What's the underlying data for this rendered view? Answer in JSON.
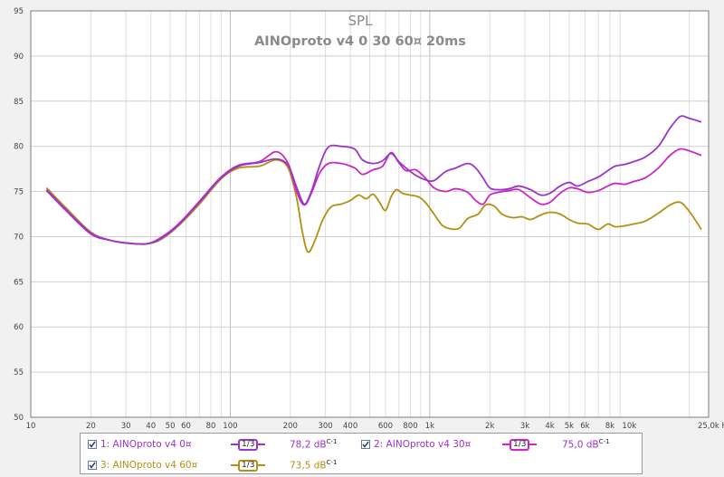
{
  "chart_data": {
    "type": "line",
    "title": "SPL",
    "subtitle": "AINOproto v4 0 30 60¤ 20ms",
    "x_scale": "log",
    "xlim": [
      10,
      25000
    ],
    "ylim": [
      50,
      95
    ],
    "grid": true,
    "legend_position": "bottom",
    "x_tick_labels": [
      {
        "value": 10,
        "label": "10"
      },
      {
        "value": 20,
        "label": "20"
      },
      {
        "value": 30,
        "label": "30"
      },
      {
        "value": 40,
        "label": "40"
      },
      {
        "value": 50,
        "label": "50"
      },
      {
        "value": 60,
        "label": "60"
      },
      {
        "value": 80,
        "label": "80"
      },
      {
        "value": 100,
        "label": "100"
      },
      {
        "value": 200,
        "label": "200"
      },
      {
        "value": 300,
        "label": "300"
      },
      {
        "value": 400,
        "label": "400"
      },
      {
        "value": 600,
        "label": "600"
      },
      {
        "value": 800,
        "label": "800"
      },
      {
        "value": 1000,
        "label": "1k"
      },
      {
        "value": 2000,
        "label": "2k"
      },
      {
        "value": 3000,
        "label": "3k"
      },
      {
        "value": 4000,
        "label": "4k"
      },
      {
        "value": 5000,
        "label": "5k"
      },
      {
        "value": 6000,
        "label": "6k"
      },
      {
        "value": 8000,
        "label": "8k"
      },
      {
        "value": 10000,
        "label": "10k"
      },
      {
        "value": 25000,
        "label": "25,0k Hz"
      }
    ],
    "y_ticks": [
      50,
      55,
      60,
      65,
      70,
      75,
      80,
      85,
      90,
      95
    ],
    "series": [
      {
        "name": "1: AINOproto v4 0¤",
        "color": "#9a35c8",
        "smoothing": "1/3",
        "value": "78,2 dB",
        "points": [
          [
            12,
            75.2
          ],
          [
            15,
            73
          ],
          [
            20,
            70.4
          ],
          [
            25,
            69.6
          ],
          [
            30,
            69.3
          ],
          [
            38,
            69.2
          ],
          [
            45,
            69.8
          ],
          [
            55,
            71.3
          ],
          [
            70,
            73.8
          ],
          [
            90,
            76.5
          ],
          [
            110,
            77.8
          ],
          [
            140,
            78.2
          ],
          [
            170,
            78.6
          ],
          [
            195,
            77.9
          ],
          [
            215,
            75.5
          ],
          [
            235,
            73.6
          ],
          [
            255,
            75
          ],
          [
            280,
            77.8
          ],
          [
            310,
            79.9
          ],
          [
            360,
            80
          ],
          [
            420,
            79.7
          ],
          [
            460,
            78.5
          ],
          [
            520,
            78.1
          ],
          [
            580,
            78.4
          ],
          [
            640,
            79.2
          ],
          [
            700,
            78.3
          ],
          [
            760,
            77.6
          ],
          [
            850,
            76.8
          ],
          [
            950,
            76.3
          ],
          [
            1050,
            76.2
          ],
          [
            1200,
            77.2
          ],
          [
            1350,
            77.6
          ],
          [
            1550,
            78.1
          ],
          [
            1700,
            77.6
          ],
          [
            1850,
            76.5
          ],
          [
            2000,
            75.4
          ],
          [
            2200,
            75.2
          ],
          [
            2500,
            75.3
          ],
          [
            2800,
            75.6
          ],
          [
            3200,
            75.2
          ],
          [
            3600,
            74.6
          ],
          [
            4000,
            74.8
          ],
          [
            4500,
            75.6
          ],
          [
            5000,
            76
          ],
          [
            5500,
            75.6
          ],
          [
            6200,
            76.1
          ],
          [
            7000,
            76.6
          ],
          [
            7800,
            77.3
          ],
          [
            8500,
            77.8
          ],
          [
            9500,
            78
          ],
          [
            10500,
            78.3
          ],
          [
            12000,
            78.8
          ],
          [
            14000,
            80
          ],
          [
            16000,
            82
          ],
          [
            18000,
            83.3
          ],
          [
            20000,
            83.1
          ],
          [
            23000,
            82.7
          ]
        ]
      },
      {
        "name": "2: AINOproto v4 30¤",
        "color": "#cc27c5",
        "smoothing": "1/3",
        "value": "75,0 dB",
        "points": [
          [
            12,
            75.1
          ],
          [
            15,
            72.9
          ],
          [
            20,
            70.3
          ],
          [
            25,
            69.6
          ],
          [
            30,
            69.3
          ],
          [
            38,
            69.2
          ],
          [
            45,
            69.9
          ],
          [
            55,
            71.4
          ],
          [
            70,
            73.9
          ],
          [
            90,
            76.6
          ],
          [
            110,
            77.9
          ],
          [
            140,
            78.3
          ],
          [
            170,
            79.4
          ],
          [
            195,
            78.1
          ],
          [
            215,
            75
          ],
          [
            235,
            73.5
          ],
          [
            255,
            74.8
          ],
          [
            280,
            77
          ],
          [
            310,
            78.1
          ],
          [
            360,
            78.1
          ],
          [
            420,
            77.6
          ],
          [
            460,
            76.9
          ],
          [
            520,
            77.4
          ],
          [
            580,
            77.8
          ],
          [
            640,
            79.3
          ],
          [
            700,
            78.2
          ],
          [
            760,
            77.3
          ],
          [
            850,
            77.4
          ],
          [
            950,
            76.5
          ],
          [
            1050,
            75.4
          ],
          [
            1200,
            75
          ],
          [
            1350,
            75.3
          ],
          [
            1550,
            74.9
          ],
          [
            1700,
            74
          ],
          [
            1850,
            73.6
          ],
          [
            2000,
            74.6
          ],
          [
            2200,
            74.9
          ],
          [
            2500,
            75.1
          ],
          [
            2800,
            75.2
          ],
          [
            3200,
            74.3
          ],
          [
            3600,
            73.6
          ],
          [
            4000,
            73.8
          ],
          [
            4500,
            74.8
          ],
          [
            5000,
            75.4
          ],
          [
            5500,
            75.3
          ],
          [
            6200,
            74.9
          ],
          [
            7000,
            75.1
          ],
          [
            7800,
            75.6
          ],
          [
            8500,
            75.9
          ],
          [
            9500,
            75.8
          ],
          [
            10500,
            76.1
          ],
          [
            12000,
            76.5
          ],
          [
            14000,
            77.6
          ],
          [
            16000,
            79
          ],
          [
            18000,
            79.7
          ],
          [
            20000,
            79.5
          ],
          [
            23000,
            79
          ]
        ]
      },
      {
        "name": "3: AINOproto v4 60¤",
        "color": "#b49012",
        "smoothing": "1/3",
        "value": "73,5 dB",
        "points": [
          [
            12,
            75.4
          ],
          [
            15,
            73.2
          ],
          [
            20,
            70.5
          ],
          [
            25,
            69.6
          ],
          [
            30,
            69.3
          ],
          [
            38,
            69.2
          ],
          [
            45,
            69.7
          ],
          [
            55,
            71.2
          ],
          [
            70,
            73.6
          ],
          [
            90,
            76.4
          ],
          [
            110,
            77.6
          ],
          [
            140,
            77.8
          ],
          [
            170,
            78.5
          ],
          [
            195,
            77.6
          ],
          [
            215,
            74.3
          ],
          [
            230,
            70.5
          ],
          [
            245,
            68.3
          ],
          [
            265,
            69.5
          ],
          [
            290,
            71.8
          ],
          [
            320,
            73.3
          ],
          [
            360,
            73.6
          ],
          [
            400,
            74
          ],
          [
            440,
            74.6
          ],
          [
            480,
            74.2
          ],
          [
            520,
            74.7
          ],
          [
            560,
            73.8
          ],
          [
            600,
            72.9
          ],
          [
            640,
            74.4
          ],
          [
            680,
            75.2
          ],
          [
            730,
            74.8
          ],
          [
            800,
            74.6
          ],
          [
            880,
            74.4
          ],
          [
            950,
            73.8
          ],
          [
            1050,
            72.5
          ],
          [
            1150,
            71.3
          ],
          [
            1250,
            70.9
          ],
          [
            1400,
            70.9
          ],
          [
            1550,
            72
          ],
          [
            1750,
            72.5
          ],
          [
            1900,
            73.5
          ],
          [
            2100,
            73.4
          ],
          [
            2300,
            72.5
          ],
          [
            2600,
            72.1
          ],
          [
            2900,
            72.2
          ],
          [
            3200,
            71.9
          ],
          [
            3600,
            72.4
          ],
          [
            4000,
            72.7
          ],
          [
            4500,
            72.5
          ],
          [
            5000,
            71.9
          ],
          [
            5500,
            71.5
          ],
          [
            6200,
            71.4
          ],
          [
            7000,
            70.8
          ],
          [
            7800,
            71.4
          ],
          [
            8500,
            71.1
          ],
          [
            9500,
            71.2
          ],
          [
            10500,
            71.4
          ],
          [
            12000,
            71.7
          ],
          [
            14000,
            72.6
          ],
          [
            16000,
            73.5
          ],
          [
            18000,
            73.8
          ],
          [
            20000,
            72.8
          ],
          [
            23000,
            70.8
          ]
        ]
      }
    ]
  },
  "legend": {
    "items": [
      {
        "label": "1: AINOproto v4 0¤",
        "color": "#9a35c8",
        "smoothing": "1/3",
        "value": "78,2 dB",
        "superscript": "C-1"
      },
      {
        "label": "2: AINOproto v4 30¤",
        "color": "#cc27c5",
        "smoothing": "1/3",
        "value": "75,0 dB",
        "superscript": "C-1"
      },
      {
        "label": "3: AINOproto v4 60¤",
        "color": "#b49012",
        "smoothing": "1/3",
        "value": "73,5 dB",
        "superscript": "C-1"
      }
    ]
  }
}
